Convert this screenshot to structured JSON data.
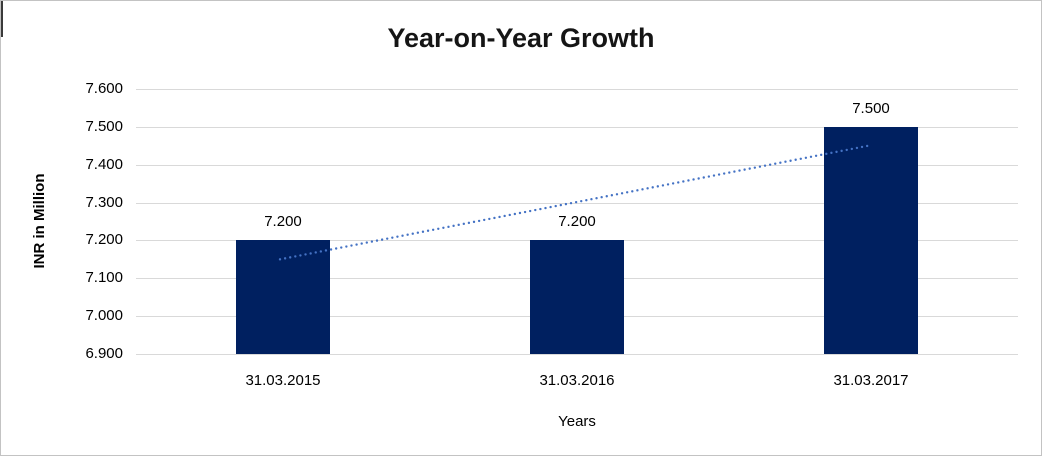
{
  "chart_data": {
    "type": "bar",
    "title": "Year-on-Year Growth",
    "xlabel": "Years",
    "ylabel": "INR in Million",
    "categories": [
      "31.03.2015",
      "31.03.2016",
      "31.03.2017"
    ],
    "values": [
      7.2,
      7.2,
      7.5
    ],
    "value_labels": [
      "7.200",
      "7.200",
      "7.500"
    ],
    "yticks": [
      "7.600",
      "7.500",
      "7.400",
      "7.300",
      "7.200",
      "7.100",
      "7.000",
      "6.900"
    ],
    "ylim": [
      6.9,
      7.6
    ],
    "ytick_step": 0.1,
    "grid": "horizontal",
    "legend": "none",
    "colors": {
      "bar": "#002060",
      "trendline": "#4472C4",
      "gridline": "#d9d9d9",
      "title_text": "#151515",
      "axis_text": "#000000",
      "frame_border": "#c3c3c3"
    },
    "trendline": {
      "type": "linear",
      "style": "dotted"
    }
  }
}
